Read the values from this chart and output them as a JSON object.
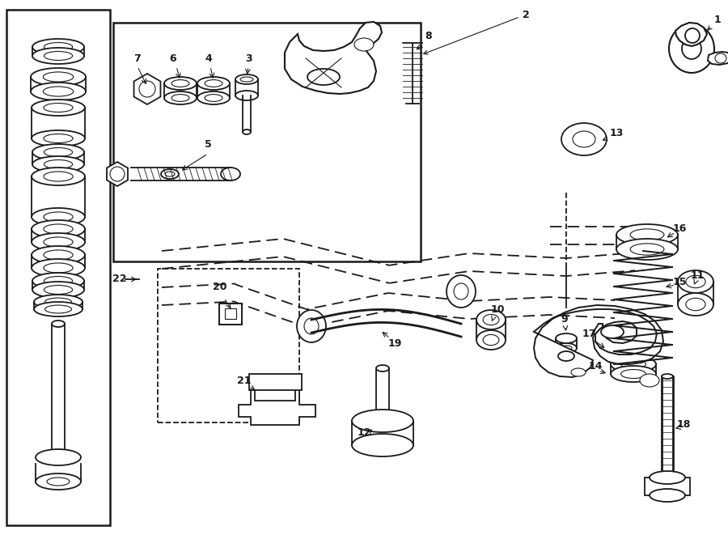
{
  "bg_color": "#ffffff",
  "line_color": "#1a1a1a",
  "fig_width": 9.0,
  "fig_height": 6.61,
  "dpi": 100,
  "lw": 1.3,
  "lw_thick": 2.0,
  "lw_thin": 0.8,
  "fontsize_label": 9,
  "fontsize_small": 8
}
